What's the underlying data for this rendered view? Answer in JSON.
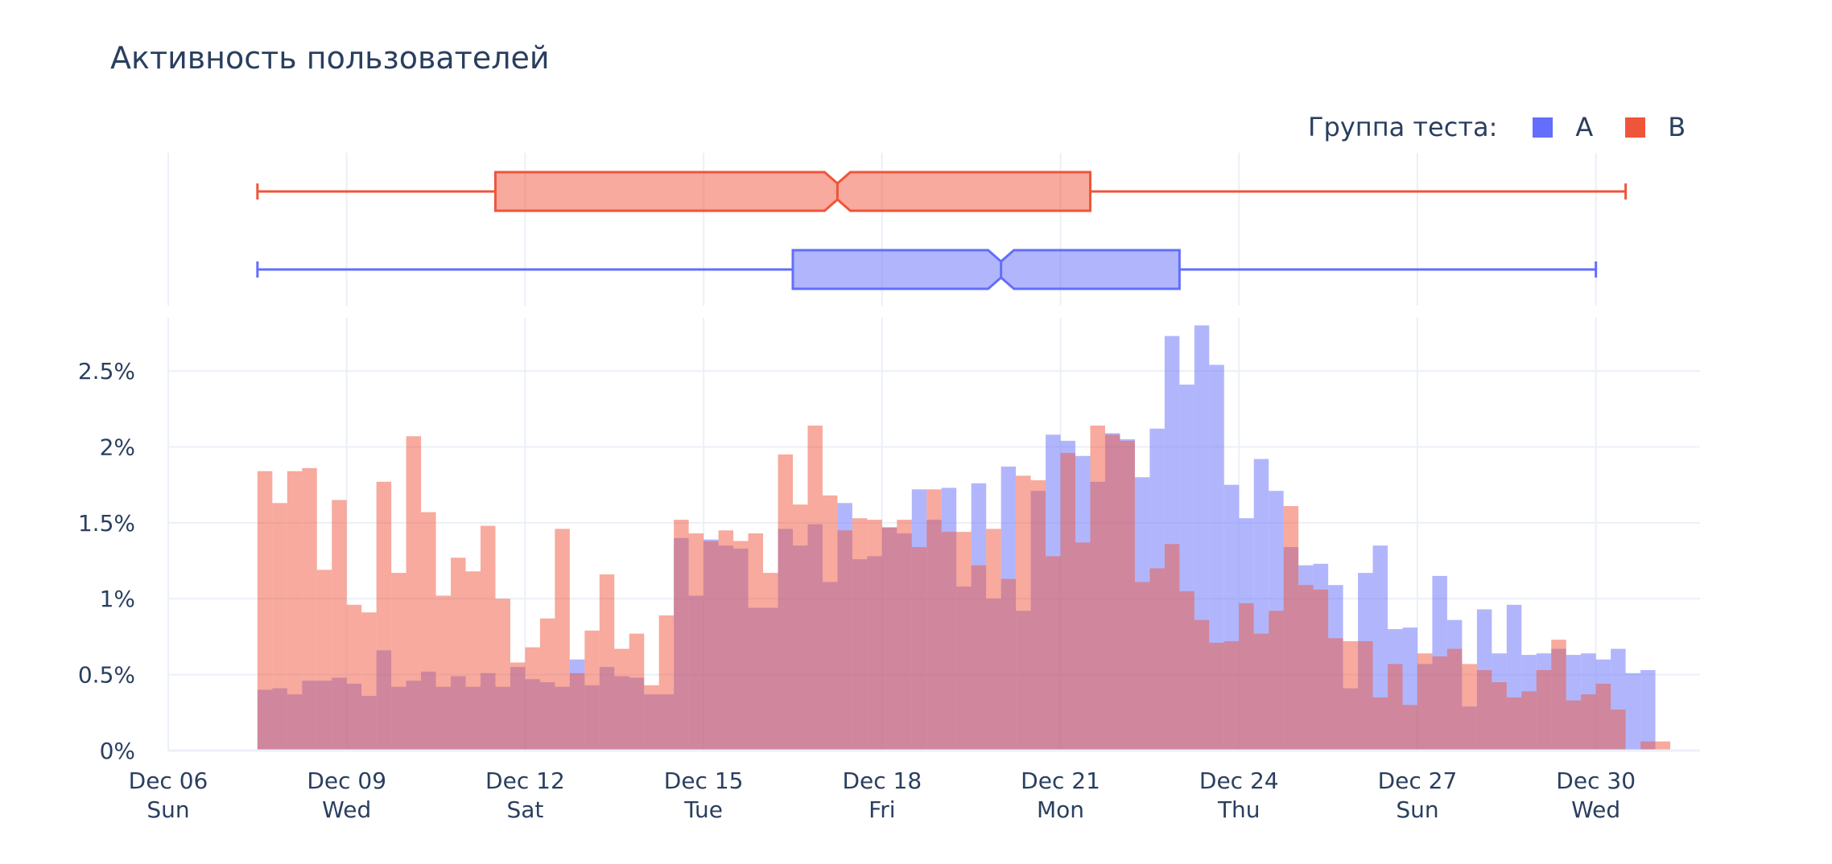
{
  "chart_data": {
    "type": "histogram",
    "title": "Активность пользователей",
    "legend": {
      "title": "Группа теста:",
      "placement": "top-right"
    },
    "bin_hours": 6,
    "bin_start": "2020-12-07T12:00",
    "x_range": [
      "2020-12-06T00:00",
      "2020-12-31T18:00"
    ],
    "y_range": [
      0,
      2.85
    ],
    "y_unit": "%",
    "grid": true,
    "x_ticks": [
      {
        "date": "2020-12-06",
        "label1": "Dec 06",
        "label2": "Sun"
      },
      {
        "date": "2020-12-09",
        "label1": "Dec 09",
        "label2": "Wed"
      },
      {
        "date": "2020-12-12",
        "label1": "Dec 12",
        "label2": "Sat"
      },
      {
        "date": "2020-12-15",
        "label1": "Dec 15",
        "label2": "Tue"
      },
      {
        "date": "2020-12-18",
        "label1": "Dec 18",
        "label2": "Fri"
      },
      {
        "date": "2020-12-21",
        "label1": "Dec 21",
        "label2": "Mon"
      },
      {
        "date": "2020-12-24",
        "label1": "Dec 24",
        "label2": "Thu"
      },
      {
        "date": "2020-12-27",
        "label1": "Dec 27",
        "label2": "Sun"
      },
      {
        "date": "2020-12-30",
        "label1": "Dec 30",
        "label2": "Wed"
      }
    ],
    "y_ticks": [
      {
        "value": 0,
        "label": "0%"
      },
      {
        "value": 0.5,
        "label": "0.5%"
      },
      {
        "value": 1,
        "label": "1%"
      },
      {
        "value": 1.5,
        "label": "1.5%"
      },
      {
        "value": 2,
        "label": "2%"
      },
      {
        "value": 2.5,
        "label": "2.5%"
      }
    ],
    "series": [
      {
        "name": "A",
        "color": "#636efa",
        "values": [
          0.4,
          0.41,
          0.37,
          0.46,
          0.46,
          0.48,
          0.44,
          0.36,
          0.66,
          0.42,
          0.46,
          0.52,
          0.42,
          0.49,
          0.42,
          0.51,
          0.42,
          0.55,
          0.47,
          0.45,
          0.42,
          0.6,
          0.43,
          0.55,
          0.49,
          0.48,
          0.37,
          0.37,
          1.4,
          1.02,
          1.39,
          1.35,
          1.33,
          0.94,
          0.94,
          1.46,
          1.35,
          1.49,
          1.11,
          1.63,
          1.26,
          1.28,
          1.47,
          1.43,
          1.72,
          1.52,
          1.73,
          1.08,
          1.76,
          1.0,
          1.87,
          0.92,
          1.71,
          2.08,
          2.04,
          1.94,
          1.77,
          2.09,
          2.05,
          1.8,
          2.12,
          2.73,
          2.41,
          2.8,
          2.54,
          1.75,
          1.53,
          1.92,
          1.71,
          1.34,
          1.22,
          1.23,
          1.09,
          0.41,
          1.17,
          1.35,
          0.8,
          0.81,
          0.57,
          1.15,
          0.86,
          0.29,
          0.93,
          0.64,
          0.96,
          0.63,
          0.64,
          0.67,
          0.63,
          0.64,
          0.6,
          0.67,
          0.51,
          0.53,
          0.0
        ],
        "box": {
          "min": "2020-12-07T12:00",
          "q1": "2020-12-16T12:00",
          "median": "2020-12-20T00:00",
          "q3": "2020-12-23T00:00",
          "max": "2020-12-30T00:00"
        }
      },
      {
        "name": "B",
        "color": "#ef553b",
        "values": [
          1.84,
          1.63,
          1.84,
          1.86,
          1.19,
          1.65,
          0.96,
          0.91,
          1.77,
          1.17,
          2.07,
          1.57,
          1.02,
          1.27,
          1.18,
          1.48,
          1.0,
          0.58,
          0.68,
          0.87,
          1.46,
          0.51,
          0.79,
          1.16,
          0.67,
          0.77,
          0.43,
          0.89,
          1.52,
          1.43,
          1.38,
          1.45,
          1.38,
          1.43,
          1.17,
          1.95,
          1.62,
          2.14,
          1.68,
          1.45,
          1.53,
          1.52,
          1.47,
          1.52,
          1.34,
          1.72,
          1.44,
          1.44,
          1.22,
          1.46,
          1.13,
          1.81,
          1.78,
          1.28,
          1.96,
          1.37,
          2.14,
          2.08,
          2.04,
          1.11,
          1.2,
          1.36,
          1.05,
          0.86,
          0.71,
          0.72,
          0.97,
          0.77,
          0.92,
          1.61,
          1.09,
          1.06,
          0.74,
          0.72,
          0.72,
          0.35,
          0.57,
          0.3,
          0.64,
          0.62,
          0.67,
          0.57,
          0.53,
          0.45,
          0.35,
          0.39,
          0.53,
          0.73,
          0.33,
          0.37,
          0.44,
          0.27,
          0.0,
          0.06,
          0.06
        ],
        "box": {
          "min": "2020-12-07T12:00",
          "q1": "2020-12-11T12:00",
          "median": "2020-12-17T06:00",
          "q3": "2020-12-21T12:00",
          "max": "2020-12-30T12:00"
        }
      }
    ]
  }
}
